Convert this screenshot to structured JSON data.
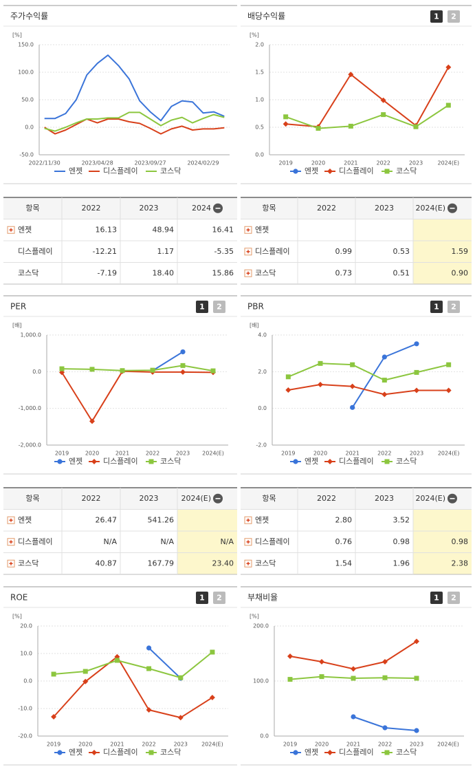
{
  "buttons": [
    "1",
    "2"
  ],
  "chart_data": [
    {
      "type": "line",
      "title": "주가수익률",
      "unit": "[%]",
      "markers": false,
      "grid": true,
      "categories": [
        "2022/11/30",
        null,
        null,
        null,
        null,
        "2023/04/28",
        null,
        null,
        null,
        null,
        "2023/09/27",
        null,
        null,
        null,
        null,
        "2024/02/29",
        null,
        null
      ],
      "series": [
        {
          "name": "엔젯",
          "color": "#3a74d9",
          "values": [
            16,
            16,
            25,
            50,
            95,
            116,
            131,
            112,
            88,
            48,
            28,
            12,
            38,
            48,
            46,
            26,
            28,
            20
          ]
        },
        {
          "name": "디스플레이",
          "color": "#d8401a",
          "values": [
            0,
            -12,
            -5,
            5,
            15,
            8,
            15,
            15,
            10,
            7,
            -2,
            -12,
            -3,
            2,
            -5,
            -3,
            -3,
            -1
          ]
        },
        {
          "name": "코스닥",
          "color": "#8cc63f",
          "values": [
            -2,
            -7,
            0,
            8,
            15,
            15,
            17,
            17,
            27,
            27,
            15,
            3,
            13,
            18,
            8,
            16,
            23,
            18
          ]
        }
      ],
      "ylim": [
        -50,
        150
      ],
      "yticks": [
        {
          "value": 150,
          "label": "150.0"
        },
        {
          "value": 100,
          "label": "100.0"
        },
        {
          "value": 50,
          "label": "50.0"
        },
        {
          "value": 0,
          "label": "0.0"
        },
        {
          "value": -50,
          "label": "-50.0"
        }
      ]
    },
    {
      "type": "line",
      "title": "배당수익률",
      "unit": "[%]",
      "markers": true,
      "grid": true,
      "buttons": true,
      "categories": [
        "2019",
        "2020",
        "2021",
        "2022",
        "2023",
        "2024(E)"
      ],
      "series": [
        {
          "name": "엔젯",
          "color": "#3a74d9",
          "marker": "circle",
          "values": [
            null,
            null,
            null,
            null,
            null,
            null
          ]
        },
        {
          "name": "디스플레이",
          "color": "#d8401a",
          "marker": "diamond",
          "values": [
            0.56,
            0.51,
            1.46,
            0.99,
            0.53,
            1.59
          ]
        },
        {
          "name": "코스닥",
          "color": "#8cc63f",
          "marker": "square",
          "values": [
            0.69,
            0.48,
            0.52,
            0.73,
            0.51,
            0.9
          ]
        }
      ],
      "ylim": [
        0,
        2
      ],
      "yticks": [
        {
          "value": 2,
          "label": "2.0"
        },
        {
          "value": 1.5,
          "label": "1.5"
        },
        {
          "value": 1,
          "label": "1.0"
        },
        {
          "value": 0.5,
          "label": "0.5"
        },
        {
          "value": 0,
          "label": "0.0"
        }
      ]
    },
    {
      "type": "line",
      "title": "PER",
      "unit": "[배]",
      "markers": true,
      "grid": true,
      "buttons": true,
      "categories": [
        "2019",
        "2020",
        "2021",
        "2022",
        "2023",
        "2024(E)"
      ],
      "series": [
        {
          "name": "엔젯",
          "color": "#3a74d9",
          "marker": "circle",
          "values": [
            null,
            null,
            null,
            26.47,
            541.26,
            null
          ]
        },
        {
          "name": "디스플레이",
          "color": "#d8401a",
          "marker": "diamond",
          "values": [
            -20,
            -1350,
            10,
            -10,
            -10,
            -20
          ]
        },
        {
          "name": "코스닥",
          "color": "#8cc63f",
          "marker": "square",
          "values": [
            80,
            65,
            30,
            40.87,
            167.79,
            23.4
          ]
        }
      ],
      "ylim": [
        -2000,
        1000
      ],
      "yticks": [
        {
          "value": 1000,
          "label": "1,000.0"
        },
        {
          "value": 0,
          "label": "0.0"
        },
        {
          "value": -1000,
          "label": "-1,000.0"
        },
        {
          "value": -2000,
          "label": "-2,000.0"
        }
      ]
    },
    {
      "type": "line",
      "title": "PBR",
      "unit": "[배]",
      "markers": true,
      "grid": true,
      "buttons": true,
      "categories": [
        "2019",
        "2020",
        "2021",
        "2022",
        "2023",
        "2024(E)"
      ],
      "series": [
        {
          "name": "엔젯",
          "color": "#3a74d9",
          "marker": "circle",
          "values": [
            null,
            null,
            0.05,
            2.8,
            3.52,
            null
          ]
        },
        {
          "name": "디스플레이",
          "color": "#d8401a",
          "marker": "diamond",
          "values": [
            1.0,
            1.3,
            1.2,
            0.76,
            0.98,
            0.98
          ]
        },
        {
          "name": "코스닥",
          "color": "#8cc63f",
          "marker": "square",
          "values": [
            1.72,
            2.45,
            2.38,
            1.54,
            1.96,
            2.38
          ]
        }
      ],
      "ylim": [
        -2,
        4
      ],
      "yticks": [
        {
          "value": 4,
          "label": "4.0"
        },
        {
          "value": 2,
          "label": "2.0"
        },
        {
          "value": 0,
          "label": "0.0"
        },
        {
          "value": -2,
          "label": "-2.0"
        }
      ]
    },
    {
      "type": "line",
      "title": "ROE",
      "unit": "[%]",
      "markers": true,
      "grid": true,
      "buttons": true,
      "categories": [
        "2019",
        "2020",
        "2021",
        "2022",
        "2023",
        "2024(E)"
      ],
      "series": [
        {
          "name": "엔젯",
          "color": "#3a74d9",
          "marker": "circle",
          "values": [
            null,
            null,
            null,
            12,
            1,
            null
          ]
        },
        {
          "name": "디스플레이",
          "color": "#d8401a",
          "marker": "diamond",
          "values": [
            -13,
            -0.2,
            8.8,
            -10.5,
            -13.3,
            -6
          ]
        },
        {
          "name": "코스닥",
          "color": "#8cc63f",
          "marker": "square",
          "values": [
            2.5,
            3.5,
            7.5,
            4.5,
            1.2,
            10.5
          ]
        }
      ],
      "ylim": [
        -20,
        20
      ],
      "yticks": [
        {
          "value": 20,
          "label": "20.0"
        },
        {
          "value": 10,
          "label": "10.0"
        },
        {
          "value": 0,
          "label": "0.0"
        },
        {
          "value": -10,
          "label": "-10.0"
        },
        {
          "value": -20,
          "label": "-20.0"
        }
      ]
    },
    {
      "type": "line",
      "title": "부채비율",
      "unit": "[%]",
      "markers": true,
      "grid": true,
      "buttons": true,
      "categories": [
        "2019",
        "2020",
        "2021",
        "2022",
        "2023",
        "2024(E)"
      ],
      "series": [
        {
          "name": "엔젯",
          "color": "#3a74d9",
          "marker": "circle",
          "values": [
            null,
            null,
            35,
            15,
            10,
            null
          ]
        },
        {
          "name": "디스플레이",
          "color": "#d8401a",
          "marker": "diamond",
          "values": [
            145,
            135,
            122,
            135,
            172,
            null
          ]
        },
        {
          "name": "코스닥",
          "color": "#8cc63f",
          "marker": "square",
          "values": [
            103,
            108,
            105,
            106,
            105,
            null
          ]
        }
      ],
      "ylim": [
        0,
        200
      ],
      "yticks": [
        {
          "value": 200,
          "label": "200.0"
        },
        {
          "value": 100,
          "label": "100.0"
        },
        {
          "value": 0,
          "label": "0.0"
        }
      ]
    }
  ],
  "tables": [
    {
      "header": [
        "항목",
        "2022",
        "2023",
        "2024"
      ],
      "rows": [
        {
          "name": "엔젯",
          "cells": [
            "16.13",
            "48.94",
            "16.41"
          ]
        },
        {
          "name": "디스플레이",
          "cells": [
            "-12.21",
            "1.17",
            "-5.35"
          ]
        },
        {
          "name": "코스닥",
          "cells": [
            "-7.19",
            "18.40",
            "15.86"
          ]
        }
      ]
    },
    {
      "header": [
        "항목",
        "2022",
        "2023",
        "2024(E)"
      ],
      "rows": [
        {
          "name": "엔젯",
          "cells": [
            null,
            null,
            null
          ]
        },
        {
          "name": "디스플레이",
          "cells": [
            "0.99",
            "0.53",
            "1.59"
          ]
        },
        {
          "name": "코스닥",
          "cells": [
            "0.73",
            "0.51",
            "0.90"
          ]
        }
      ]
    },
    {
      "header": [
        "항목",
        "2022",
        "2023",
        "2024(E)"
      ],
      "rows": [
        {
          "name": "엔젯",
          "cells": [
            "26.47",
            "541.26",
            null
          ]
        },
        {
          "name": "디스플레이",
          "cells": [
            "N/A",
            "N/A",
            "N/A"
          ]
        },
        {
          "name": "코스닥",
          "cells": [
            "40.87",
            "167.79",
            "23.40"
          ]
        }
      ]
    },
    {
      "header": [
        "항목",
        "2022",
        "2023",
        "2024(E)"
      ],
      "rows": [
        {
          "name": "엔젯",
          "cells": [
            "2.80",
            "3.52",
            null
          ]
        },
        {
          "name": "디스플레이",
          "cells": [
            "0.76",
            "0.98",
            "0.98"
          ]
        },
        {
          "name": "코스닥",
          "cells": [
            "1.54",
            "1.96",
            "2.38"
          ]
        }
      ]
    }
  ]
}
